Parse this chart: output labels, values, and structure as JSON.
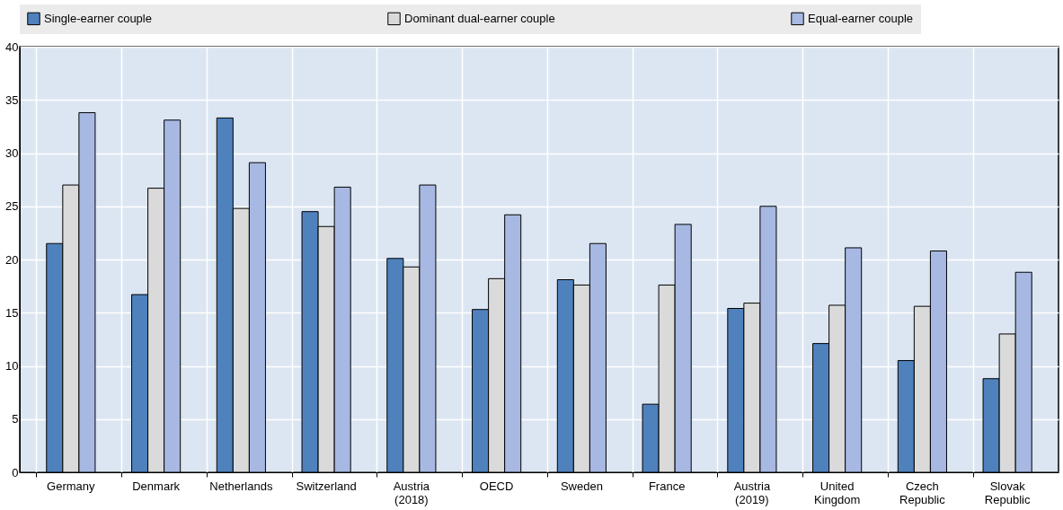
{
  "chart_data": {
    "type": "bar",
    "categories": [
      "Germany",
      "Denmark",
      "Netherlands",
      "Switzerland",
      "Austria (2018)",
      "OECD",
      "Sweden",
      "France",
      "Austria (2019)",
      "United Kingdom",
      "Czech Republic",
      "Slovak Republic"
    ],
    "series": [
      {
        "name": "Single-earner couple",
        "color": "#4f81bd",
        "values": [
          21.5,
          16.7,
          33.3,
          24.5,
          20.1,
          15.3,
          18.1,
          6.4,
          15.4,
          12.1,
          10.5,
          8.8
        ]
      },
      {
        "name": "Dominant dual-earner couple",
        "color": "#dadada",
        "values": [
          27.0,
          26.7,
          24.8,
          23.1,
          19.3,
          18.2,
          17.6,
          17.6,
          15.9,
          15.7,
          15.6,
          13.0
        ]
      },
      {
        "name": "Equal-earner couple",
        "color": "#a7b8e3",
        "values": [
          33.8,
          33.1,
          29.1,
          26.8,
          27.0,
          24.2,
          21.5,
          23.3,
          25.0,
          21.1,
          20.8,
          18.8
        ]
      }
    ],
    "ylim": [
      0,
      40
    ],
    "yticks": [
      0,
      5,
      10,
      15,
      20,
      25,
      30,
      35,
      40
    ],
    "grid": true,
    "legend": "top"
  }
}
